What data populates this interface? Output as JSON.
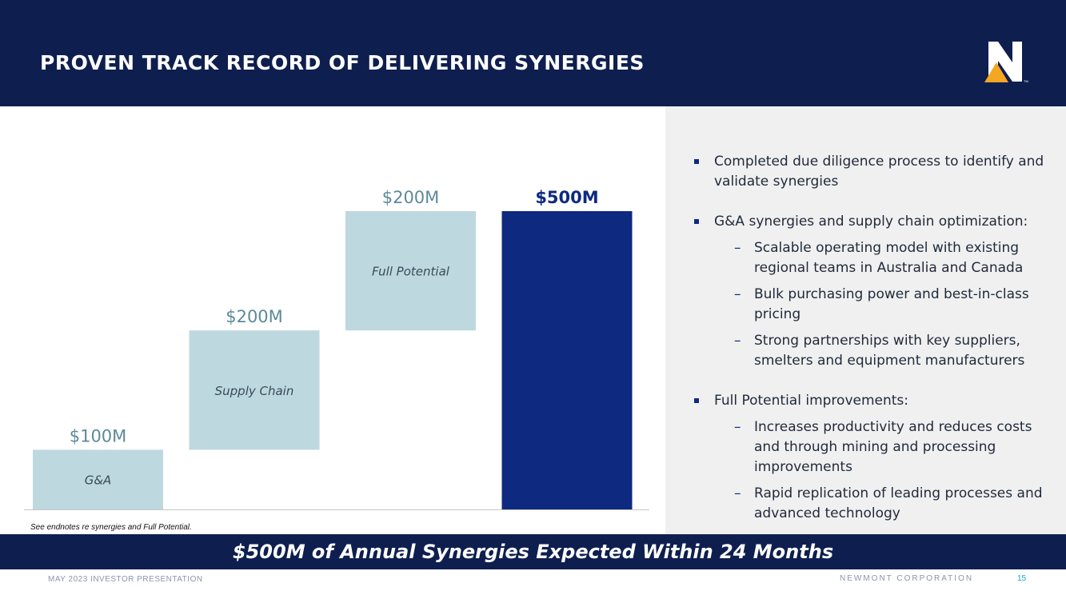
{
  "header": {
    "title": "PROVEN TRACK RECORD OF DELIVERING SYNERGIES",
    "logo_icon": "newmont-n-logo-icon",
    "logo_trademark": "TM"
  },
  "bullets": [
    {
      "text": "Completed due diligence process to identify and validate synergies",
      "subs": []
    },
    {
      "text": "G&A synergies and supply chain optimization:",
      "subs": [
        "Scalable operating model with existing regional teams in Australia and Canada",
        "Bulk purchasing power and best-in-class pricing",
        "Strong partnerships with key suppliers, smelters and equipment manufacturers"
      ]
    },
    {
      "text": "Full Potential improvements:",
      "subs": [
        "Increases productivity and reduces costs and through mining and processing improvements",
        "Rapid replication of leading processes and advanced technology"
      ]
    }
  ],
  "chart_data": {
    "type": "bar",
    "subtype": "waterfall",
    "categories": [
      "G&A",
      "Supply Chain",
      "Full Potential",
      "Total"
    ],
    "values": [
      100,
      200,
      200,
      500
    ],
    "value_labels": [
      "$100M",
      "$200M",
      "$200M",
      "$500M"
    ],
    "bar_labels": [
      "G&A",
      "Supply Chain",
      "Full Potential",
      ""
    ],
    "ylim": [
      0,
      500
    ],
    "units": "$M",
    "footnote": "See endnotes re synergies and Full Potential.",
    "colors": {
      "increment": "#bed8df",
      "total": "#0e2a80",
      "increment_label": "#5d8a9a",
      "total_label": "#0e2a80"
    }
  },
  "banner": {
    "text": "$500M of Annual Synergies Expected Within 24 Months"
  },
  "footer": {
    "left": "MAY 2023 INVESTOR PRESENTATION",
    "right": "NEWMONT CORPORATION",
    "page": "15"
  },
  "colors": {
    "navy": "#0e1f4f",
    "accent": "#f5a623",
    "panel": "#f0f0f0"
  }
}
